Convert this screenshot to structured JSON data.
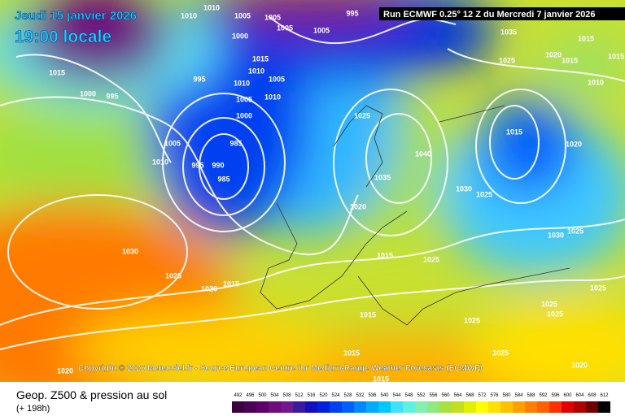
{
  "header": {
    "date": "Jeudi 15 janvier 2026",
    "time": "19:00 locale",
    "run": "Run ECMWF 0.25° 12 Z du Mercredi 7 janvier 2026"
  },
  "copyright": "Copyright © 2026 Meteociel.fr - Source European Centre for Medium-Range Weather Forecasts (ECMWF)",
  "footer": {
    "title": "Geop. Z500 & pression au sol",
    "lead": "(+ 198h)"
  },
  "scale": [
    {
      "value": 492,
      "color": "#3a0040"
    },
    {
      "value": 496,
      "color": "#4b0057"
    },
    {
      "value": 500,
      "color": "#5d006b"
    },
    {
      "value": 504,
      "color": "#6e0c80"
    },
    {
      "value": 508,
      "color": "#701890"
    },
    {
      "value": 512,
      "color": "#3c1aa0"
    },
    {
      "value": 516,
      "color": "#1010c0"
    },
    {
      "value": 520,
      "color": "#0020e0"
    },
    {
      "value": 524,
      "color": "#0040f0"
    },
    {
      "value": 528,
      "color": "#0060ff"
    },
    {
      "value": 532,
      "color": "#0088ff"
    },
    {
      "value": 536,
      "color": "#00aaff"
    },
    {
      "value": 540,
      "color": "#00c8ff"
    },
    {
      "value": 544,
      "color": "#40e0ff"
    },
    {
      "value": 548,
      "color": "#60f0e0"
    },
    {
      "value": 552,
      "color": "#80f0b0"
    },
    {
      "value": 556,
      "color": "#90e880"
    },
    {
      "value": 560,
      "color": "#a8e040"
    },
    {
      "value": 564,
      "color": "#c0e020"
    },
    {
      "value": 568,
      "color": "#e0f000"
    },
    {
      "value": 572,
      "color": "#ffff00"
    },
    {
      "value": 576,
      "color": "#ffe000"
    },
    {
      "value": 580,
      "color": "#ffc000"
    },
    {
      "value": 584,
      "color": "#ffa000"
    },
    {
      "value": 588,
      "color": "#ff8000"
    },
    {
      "value": 592,
      "color": "#ff6000"
    },
    {
      "value": 596,
      "color": "#ff3000"
    },
    {
      "value": 600,
      "color": "#e00000"
    },
    {
      "value": 604,
      "color": "#b00000"
    },
    {
      "value": 608,
      "color": "#700000"
    },
    {
      "value": 612,
      "color": "#000000"
    }
  ],
  "isobar_labels": [
    "1010",
    "1010",
    "1005",
    "1005",
    "1005",
    "1005",
    "995",
    "1000",
    "1015",
    "1000",
    "995",
    "995",
    "1015",
    "1010",
    "1005",
    "1010",
    "1005",
    "1010",
    "1000",
    "1005",
    "1010",
    "995",
    "990",
    "985",
    "985",
    "1025",
    "1040",
    "1035",
    "1030",
    "1025",
    "1015",
    "1020",
    "1030",
    "1025",
    "1035",
    "1025",
    "1020",
    "1015",
    "1015",
    "1015",
    "1010",
    "1030",
    "1025",
    "1020",
    "1015",
    "1015",
    "1025",
    "1015",
    "1025",
    "1025",
    "1025",
    "1025",
    "1015",
    "1025",
    "1020",
    "1020",
    "1015",
    "1020"
  ]
}
